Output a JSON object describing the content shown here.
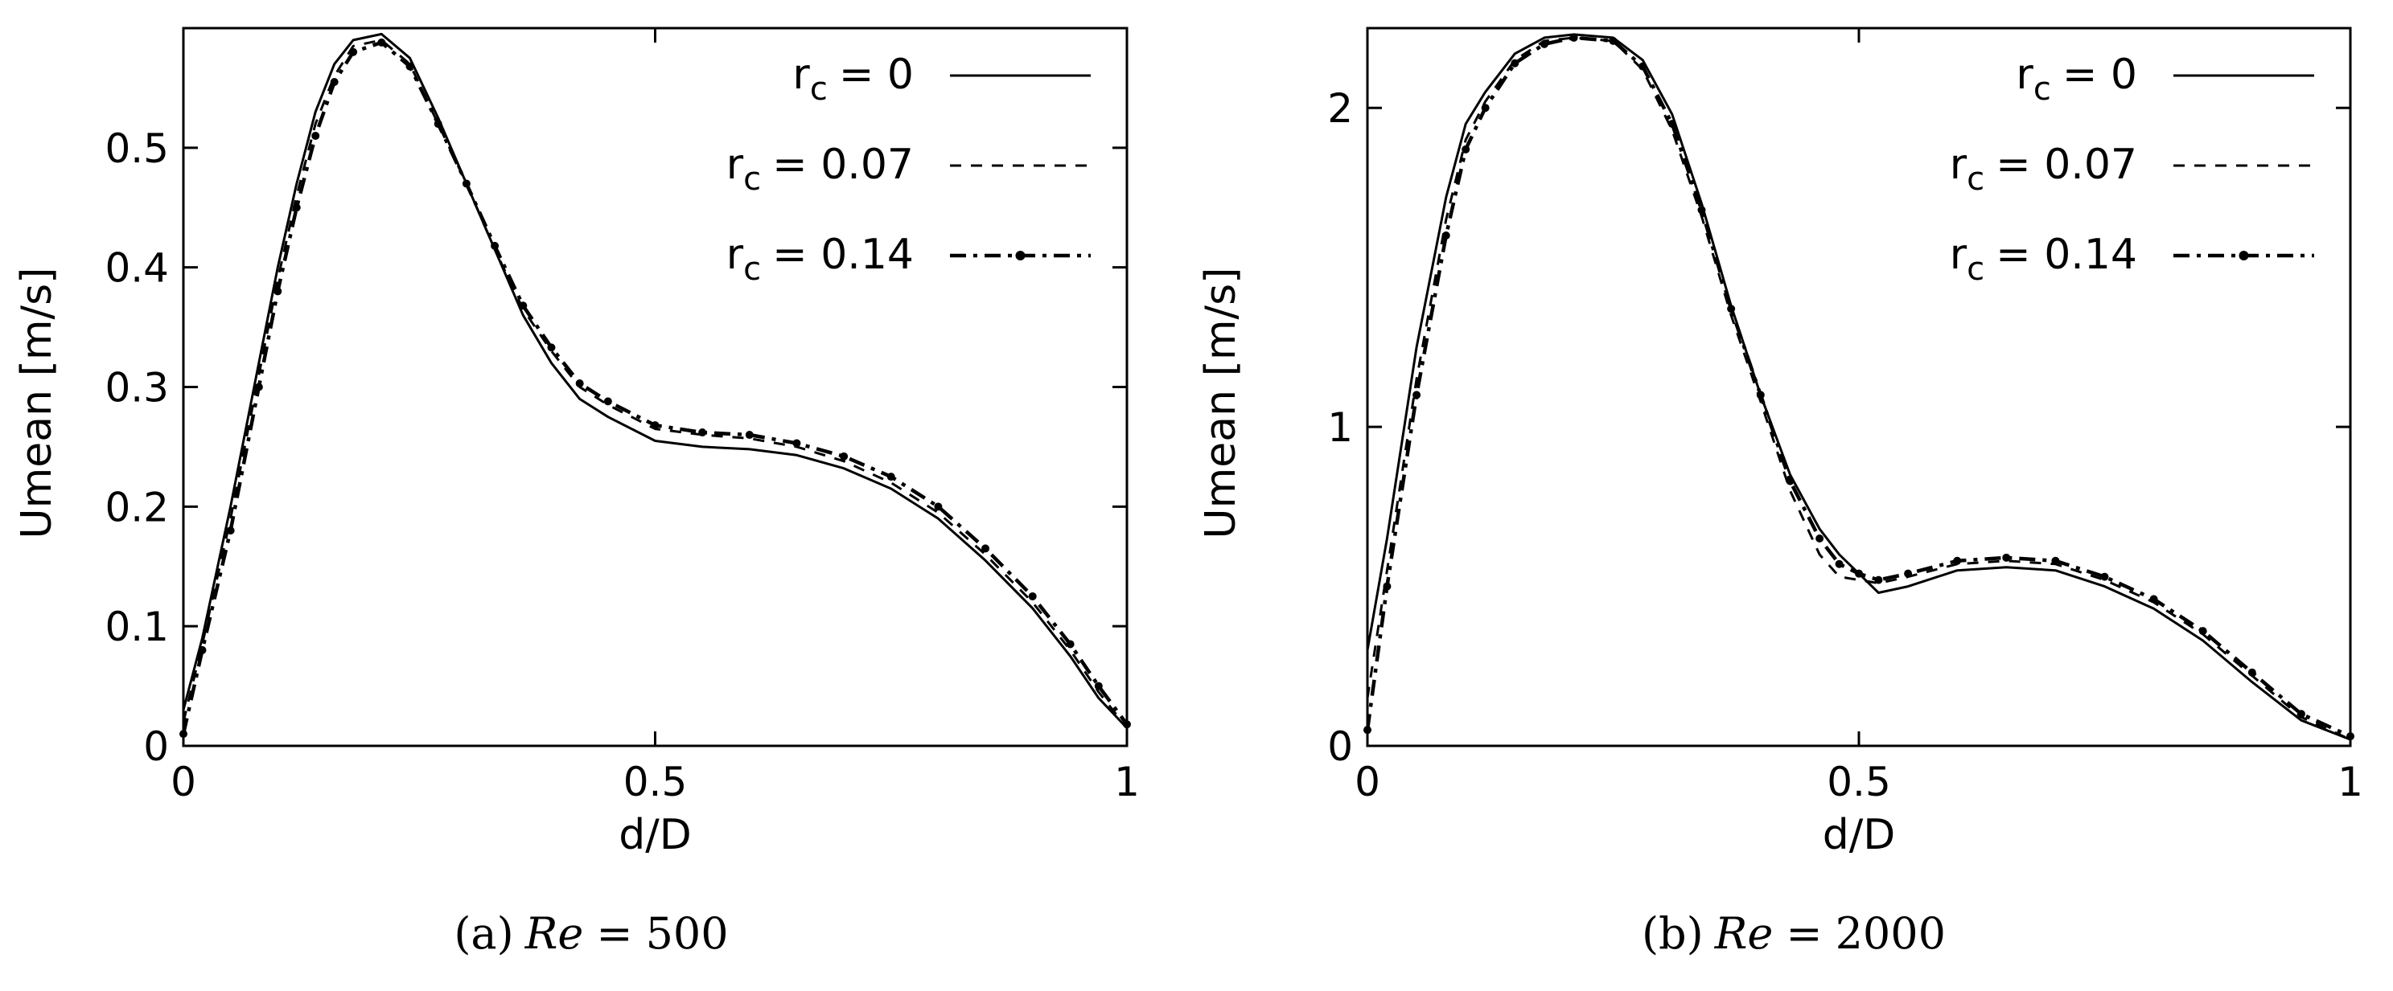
{
  "chart_data": [
    {
      "type": "line",
      "caption": {
        "label": "(a)",
        "var": "Re",
        "eq": "=",
        "value": "500"
      },
      "xlabel": "d/D",
      "ylabel": "Umean [m/s]",
      "xlim": [
        0,
        1
      ],
      "ylim": [
        0,
        0.6
      ],
      "xticks": [
        {
          "v": 0,
          "label": "0"
        },
        {
          "v": 0.5,
          "label": "0.5"
        },
        {
          "v": 1,
          "label": "1"
        }
      ],
      "yticks": [
        {
          "v": 0,
          "label": "0"
        },
        {
          "v": 0.1,
          "label": "0.1"
        },
        {
          "v": 0.2,
          "label": "0.2"
        },
        {
          "v": 0.3,
          "label": "0.3"
        },
        {
          "v": 0.4,
          "label": "0.4"
        },
        {
          "v": 0.5,
          "label": "0.5"
        }
      ],
      "legend_position": "top-right",
      "series": [
        {
          "label_main": "r",
          "label_sub": "c",
          "label_value": "= 0",
          "style": "solid",
          "x": [
            0,
            0.02,
            0.05,
            0.08,
            0.1,
            0.12,
            0.14,
            0.16,
            0.18,
            0.21,
            0.24,
            0.27,
            0.3,
            0.33,
            0.36,
            0.39,
            0.42,
            0.45,
            0.5,
            0.55,
            0.6,
            0.65,
            0.7,
            0.75,
            0.8,
            0.85,
            0.9,
            0.94,
            0.97,
            1.0
          ],
          "y": [
            0.03,
            0.09,
            0.2,
            0.32,
            0.4,
            0.47,
            0.53,
            0.57,
            0.59,
            0.595,
            0.575,
            0.525,
            0.47,
            0.415,
            0.36,
            0.32,
            0.29,
            0.275,
            0.255,
            0.25,
            0.248,
            0.243,
            0.232,
            0.215,
            0.19,
            0.155,
            0.115,
            0.075,
            0.04,
            0.015
          ]
        },
        {
          "label_main": "r",
          "label_sub": "c",
          "label_value": "= 0.07",
          "style": "dashed",
          "x": [
            0,
            0.02,
            0.05,
            0.08,
            0.1,
            0.12,
            0.14,
            0.16,
            0.18,
            0.21,
            0.24,
            0.27,
            0.3,
            0.33,
            0.36,
            0.39,
            0.42,
            0.45,
            0.5,
            0.55,
            0.6,
            0.65,
            0.7,
            0.75,
            0.8,
            0.85,
            0.9,
            0.94,
            0.97,
            1.0
          ],
          "y": [
            0.02,
            0.085,
            0.19,
            0.31,
            0.39,
            0.46,
            0.52,
            0.56,
            0.585,
            0.59,
            0.57,
            0.52,
            0.47,
            0.415,
            0.365,
            0.33,
            0.3,
            0.285,
            0.265,
            0.26,
            0.257,
            0.25,
            0.238,
            0.22,
            0.195,
            0.16,
            0.12,
            0.08,
            0.045,
            0.015
          ]
        },
        {
          "label_main": "r",
          "label_sub": "c",
          "label_value": "= 0.14",
          "style": "dashdot-marker",
          "x": [
            0,
            0.02,
            0.05,
            0.08,
            0.1,
            0.12,
            0.14,
            0.16,
            0.18,
            0.21,
            0.24,
            0.27,
            0.3,
            0.33,
            0.36,
            0.39,
            0.42,
            0.45,
            0.5,
            0.55,
            0.6,
            0.65,
            0.7,
            0.75,
            0.8,
            0.85,
            0.9,
            0.94,
            0.97,
            1.0
          ],
          "y": [
            0.01,
            0.08,
            0.18,
            0.3,
            0.38,
            0.45,
            0.51,
            0.555,
            0.58,
            0.588,
            0.568,
            0.52,
            0.47,
            0.418,
            0.368,
            0.333,
            0.303,
            0.288,
            0.268,
            0.262,
            0.26,
            0.253,
            0.242,
            0.225,
            0.2,
            0.165,
            0.125,
            0.085,
            0.05,
            0.018
          ]
        }
      ]
    },
    {
      "type": "line",
      "caption": {
        "label": "(b)",
        "var": "Re",
        "eq": "=",
        "value": "2000"
      },
      "xlabel": "d/D",
      "ylabel": "Umean [m/s]",
      "xlim": [
        0,
        1
      ],
      "ylim": [
        0,
        2.25
      ],
      "xticks": [
        {
          "v": 0,
          "label": "0"
        },
        {
          "v": 0.5,
          "label": "0.5"
        },
        {
          "v": 1,
          "label": "1"
        }
      ],
      "yticks": [
        {
          "v": 0,
          "label": "0"
        },
        {
          "v": 1,
          "label": "1"
        },
        {
          "v": 2,
          "label": "2"
        }
      ],
      "legend_position": "top-right",
      "series": [
        {
          "label_main": "r",
          "label_sub": "c",
          "label_value": "= 0",
          "style": "solid",
          "x": [
            0,
            0.02,
            0.05,
            0.08,
            0.1,
            0.12,
            0.15,
            0.18,
            0.21,
            0.25,
            0.28,
            0.31,
            0.34,
            0.37,
            0.4,
            0.43,
            0.46,
            0.48,
            0.5,
            0.52,
            0.55,
            0.6,
            0.65,
            0.7,
            0.75,
            0.8,
            0.85,
            0.9,
            0.95,
            1.0
          ],
          "y": [
            0.3,
            0.65,
            1.25,
            1.72,
            1.95,
            2.05,
            2.17,
            2.22,
            2.23,
            2.22,
            2.15,
            1.98,
            1.7,
            1.38,
            1.1,
            0.85,
            0.68,
            0.6,
            0.54,
            0.48,
            0.5,
            0.55,
            0.56,
            0.55,
            0.5,
            0.43,
            0.33,
            0.2,
            0.08,
            0.02
          ]
        },
        {
          "label_main": "r",
          "label_sub": "c",
          "label_value": "= 0.07",
          "style": "dashed",
          "x": [
            0,
            0.02,
            0.05,
            0.08,
            0.1,
            0.12,
            0.15,
            0.18,
            0.21,
            0.25,
            0.28,
            0.31,
            0.34,
            0.37,
            0.4,
            0.43,
            0.46,
            0.48,
            0.5,
            0.52,
            0.55,
            0.6,
            0.65,
            0.7,
            0.75,
            0.8,
            0.85,
            0.9,
            0.95,
            1.0
          ],
          "y": [
            0.15,
            0.55,
            1.15,
            1.65,
            1.9,
            2.02,
            2.15,
            2.21,
            2.22,
            2.21,
            2.12,
            1.93,
            1.66,
            1.35,
            1.08,
            0.8,
            0.6,
            0.53,
            0.52,
            0.51,
            0.53,
            0.57,
            0.58,
            0.57,
            0.52,
            0.45,
            0.35,
            0.22,
            0.09,
            0.02
          ]
        },
        {
          "label_main": "r",
          "label_sub": "c",
          "label_value": "= 0.14",
          "style": "dashdot-marker",
          "x": [
            0,
            0.02,
            0.05,
            0.08,
            0.1,
            0.12,
            0.15,
            0.18,
            0.21,
            0.25,
            0.28,
            0.31,
            0.34,
            0.37,
            0.4,
            0.43,
            0.46,
            0.48,
            0.5,
            0.52,
            0.55,
            0.6,
            0.65,
            0.7,
            0.75,
            0.8,
            0.85,
            0.9,
            0.95,
            1.0
          ],
          "y": [
            0.05,
            0.5,
            1.1,
            1.6,
            1.87,
            2.0,
            2.14,
            2.2,
            2.22,
            2.21,
            2.13,
            1.95,
            1.68,
            1.37,
            1.1,
            0.83,
            0.65,
            0.57,
            0.54,
            0.52,
            0.54,
            0.58,
            0.59,
            0.58,
            0.53,
            0.46,
            0.36,
            0.23,
            0.1,
            0.03
          ]
        }
      ]
    }
  ]
}
